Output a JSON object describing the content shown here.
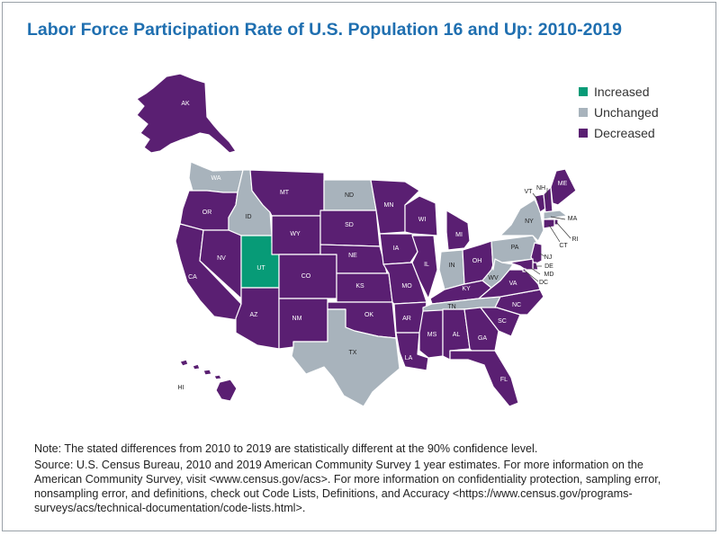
{
  "title": "Labor Force Participation Rate of U.S. Population 16 and Up: 2010-2019",
  "colors": {
    "increased": "#079b77",
    "unchanged": "#a8b3bc",
    "decreased": "#5a1f72"
  },
  "legend": [
    {
      "key": "increased",
      "label": "Increased"
    },
    {
      "key": "unchanged",
      "label": "Unchanged"
    },
    {
      "key": "decreased",
      "label": "Decreased"
    }
  ],
  "states": {
    "AK": "decreased",
    "HI": "decreased",
    "WA": "unchanged",
    "OR": "decreased",
    "CA": "decreased",
    "ID": "unchanged",
    "NV": "decreased",
    "UT": "increased",
    "AZ": "decreased",
    "MT": "decreased",
    "WY": "decreased",
    "CO": "decreased",
    "NM": "decreased",
    "ND": "unchanged",
    "SD": "decreased",
    "NE": "decreased",
    "KS": "decreased",
    "OK": "decreased",
    "TX": "unchanged",
    "MN": "decreased",
    "IA": "decreased",
    "MO": "decreased",
    "AR": "decreased",
    "LA": "decreased",
    "WI": "decreased",
    "IL": "decreased",
    "MS": "decreased",
    "MI": "decreased",
    "IN": "unchanged",
    "OH": "decreased",
    "KY": "decreased",
    "TN": "unchanged",
    "AL": "decreased",
    "GA": "decreased",
    "FL": "decreased",
    "SC": "decreased",
    "NC": "decreased",
    "VA": "decreased",
    "WV": "unchanged",
    "PA": "unchanged",
    "NY": "unchanged",
    "VT": "decreased",
    "NH": "decreased",
    "ME": "decreased",
    "MA": "unchanged",
    "RI": "decreased",
    "CT": "decreased",
    "NJ": "decreased",
    "DE": "decreased",
    "MD": "decreased",
    "DC": "decreased"
  },
  "notes": {
    "note": "Note: The stated differences from 2010 to 2019 are statistically different at the 90% confidence level.",
    "source": "Source: U.S. Census Bureau, 2010 and 2019 American Community Survey 1 year estimates. For more information on the American Community Survey, visit <www.census.gov/acs>. For more information on confidentiality protection, sampling error, nonsampling error, and definitions, check out Code Lists, Definitions, and Accuracy <https://www.census.gov/programs-surveys/acs/technical-documentation/code-lists.html>."
  }
}
